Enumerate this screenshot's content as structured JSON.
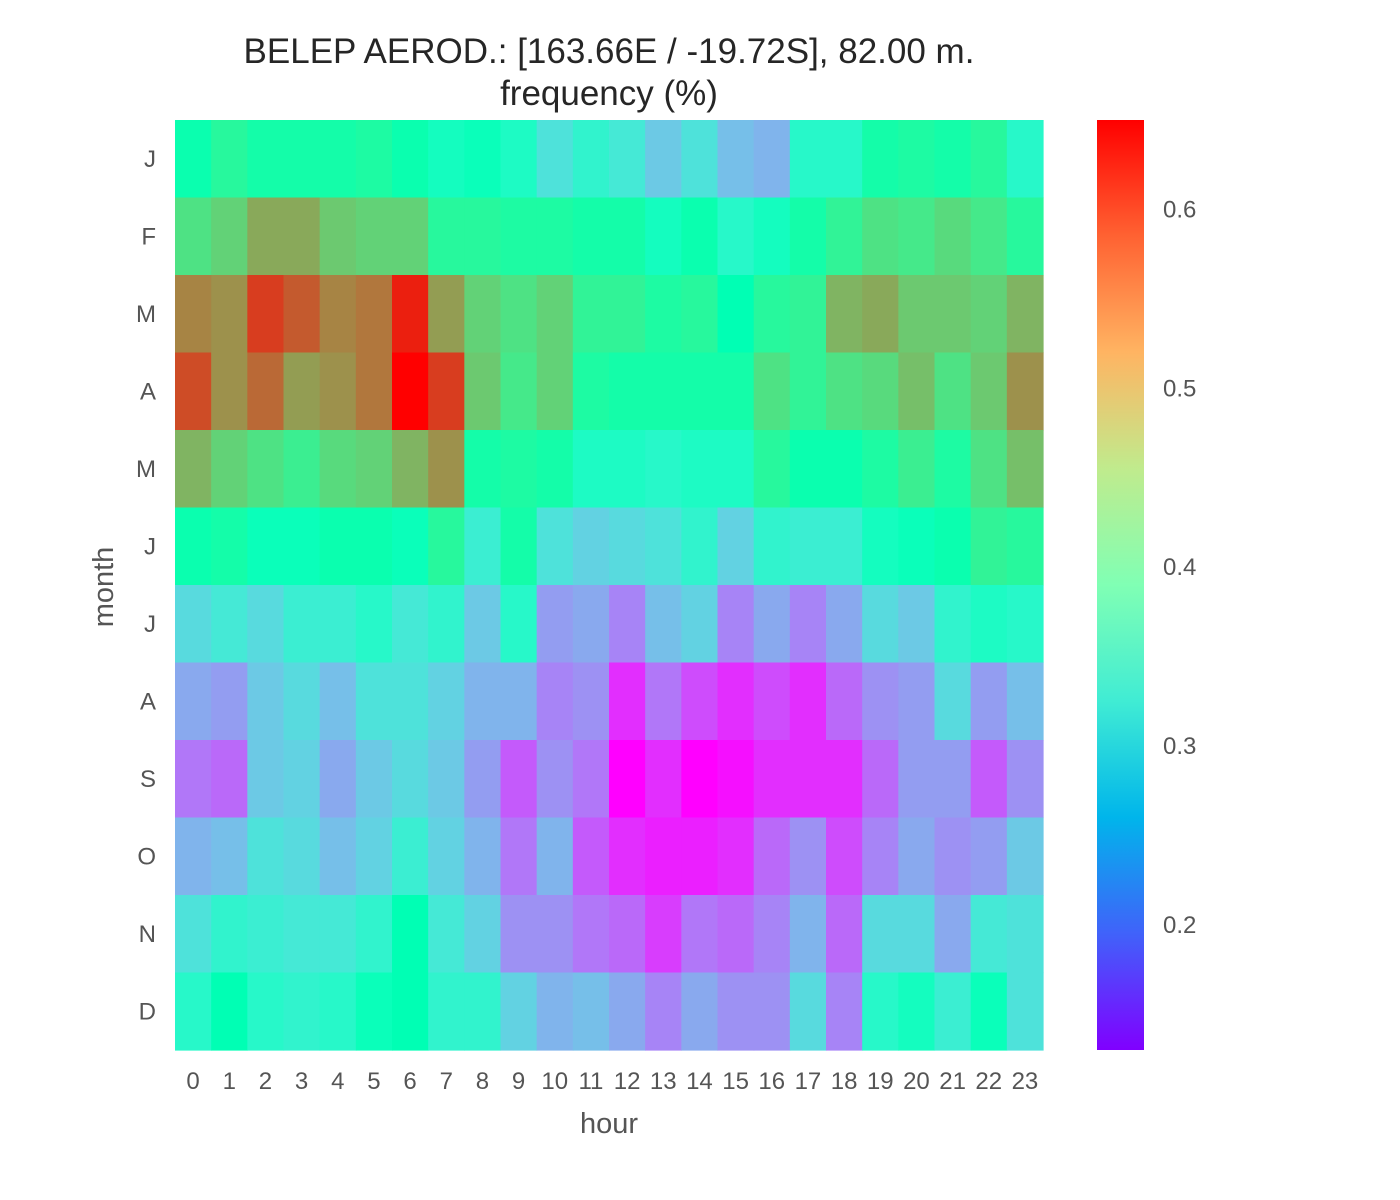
{
  "chart_data": {
    "type": "heatmap",
    "title": "BELEP AEROD.: [163.66E / -19.72S], 82.00 m.",
    "subtitle": "frequency (%)",
    "xlabel": "hour",
    "ylabel": "month",
    "x": [
      "0",
      "1",
      "2",
      "3",
      "4",
      "5",
      "6",
      "7",
      "8",
      "9",
      "10",
      "11",
      "12",
      "13",
      "14",
      "15",
      "16",
      "17",
      "18",
      "19",
      "20",
      "21",
      "22",
      "23"
    ],
    "y": [
      "J",
      "F",
      "M",
      "A",
      "M",
      "J",
      "J",
      "A",
      "S",
      "O",
      "N",
      "D"
    ],
    "values": [
      [
        0.4,
        0.43,
        0.41,
        0.41,
        0.41,
        0.42,
        0.4,
        0.37,
        0.38,
        0.36,
        0.31,
        0.34,
        0.32,
        0.28,
        0.31,
        0.27,
        0.26,
        0.35,
        0.35,
        0.41,
        0.42,
        0.41,
        0.43,
        0.35
      ],
      [
        0.47,
        0.49,
        0.53,
        0.53,
        0.5,
        0.49,
        0.49,
        0.43,
        0.43,
        0.42,
        0.42,
        0.41,
        0.41,
        0.37,
        0.4,
        0.35,
        0.37,
        0.41,
        0.44,
        0.47,
        0.46,
        0.48,
        0.46,
        0.43
      ],
      [
        0.56,
        0.55,
        0.61,
        0.59,
        0.56,
        0.57,
        0.63,
        0.54,
        0.49,
        0.47,
        0.49,
        0.44,
        0.44,
        0.42,
        0.43,
        0.39,
        0.43,
        0.44,
        0.52,
        0.53,
        0.5,
        0.5,
        0.49,
        0.52
      ],
      [
        0.6,
        0.55,
        0.58,
        0.54,
        0.55,
        0.57,
        0.65,
        0.61,
        0.5,
        0.46,
        0.49,
        0.42,
        0.41,
        0.41,
        0.41,
        0.41,
        0.47,
        0.44,
        0.47,
        0.48,
        0.51,
        0.47,
        0.5,
        0.55
      ],
      [
        0.52,
        0.49,
        0.47,
        0.45,
        0.48,
        0.49,
        0.52,
        0.55,
        0.41,
        0.42,
        0.41,
        0.36,
        0.36,
        0.35,
        0.36,
        0.36,
        0.43,
        0.4,
        0.4,
        0.42,
        0.45,
        0.42,
        0.47,
        0.51
      ],
      [
        0.4,
        0.41,
        0.38,
        0.38,
        0.4,
        0.4,
        0.38,
        0.43,
        0.33,
        0.41,
        0.31,
        0.29,
        0.3,
        0.31,
        0.34,
        0.29,
        0.34,
        0.33,
        0.33,
        0.37,
        0.38,
        0.4,
        0.44,
        0.43
      ],
      [
        0.3,
        0.32,
        0.3,
        0.33,
        0.33,
        0.35,
        0.32,
        0.34,
        0.28,
        0.35,
        0.24,
        0.25,
        0.22,
        0.27,
        0.29,
        0.22,
        0.25,
        0.22,
        0.25,
        0.3,
        0.28,
        0.34,
        0.36,
        0.35
      ],
      [
        0.25,
        0.24,
        0.28,
        0.3,
        0.27,
        0.31,
        0.31,
        0.29,
        0.26,
        0.26,
        0.22,
        0.23,
        0.16,
        0.21,
        0.18,
        0.16,
        0.18,
        0.16,
        0.2,
        0.23,
        0.24,
        0.3,
        0.24,
        0.27
      ],
      [
        0.21,
        0.2,
        0.28,
        0.29,
        0.25,
        0.28,
        0.3,
        0.28,
        0.24,
        0.19,
        0.23,
        0.21,
        0.13,
        0.16,
        0.13,
        0.14,
        0.16,
        0.16,
        0.16,
        0.2,
        0.24,
        0.24,
        0.19,
        0.23
      ],
      [
        0.26,
        0.27,
        0.31,
        0.3,
        0.27,
        0.29,
        0.33,
        0.29,
        0.26,
        0.21,
        0.26,
        0.19,
        0.16,
        0.15,
        0.15,
        0.16,
        0.2,
        0.23,
        0.18,
        0.22,
        0.25,
        0.23,
        0.24,
        0.28
      ],
      [
        0.31,
        0.34,
        0.33,
        0.32,
        0.32,
        0.34,
        0.39,
        0.32,
        0.29,
        0.23,
        0.23,
        0.21,
        0.2,
        0.17,
        0.21,
        0.2,
        0.22,
        0.26,
        0.2,
        0.3,
        0.3,
        0.25,
        0.32,
        0.31
      ],
      [
        0.35,
        0.39,
        0.35,
        0.34,
        0.35,
        0.38,
        0.39,
        0.34,
        0.34,
        0.29,
        0.26,
        0.27,
        0.25,
        0.22,
        0.25,
        0.23,
        0.23,
        0.3,
        0.22,
        0.35,
        0.37,
        0.33,
        0.38,
        0.31
      ]
    ],
    "color_scale": {
      "colormap": "rainbow",
      "min": 0.13,
      "max": 0.65,
      "ticks": [
        "0.2",
        "0.3",
        "0.4",
        "0.5",
        "0.6"
      ],
      "tick_values": [
        0.2,
        0.3,
        0.4,
        0.5,
        0.6
      ]
    },
    "grid": false
  }
}
